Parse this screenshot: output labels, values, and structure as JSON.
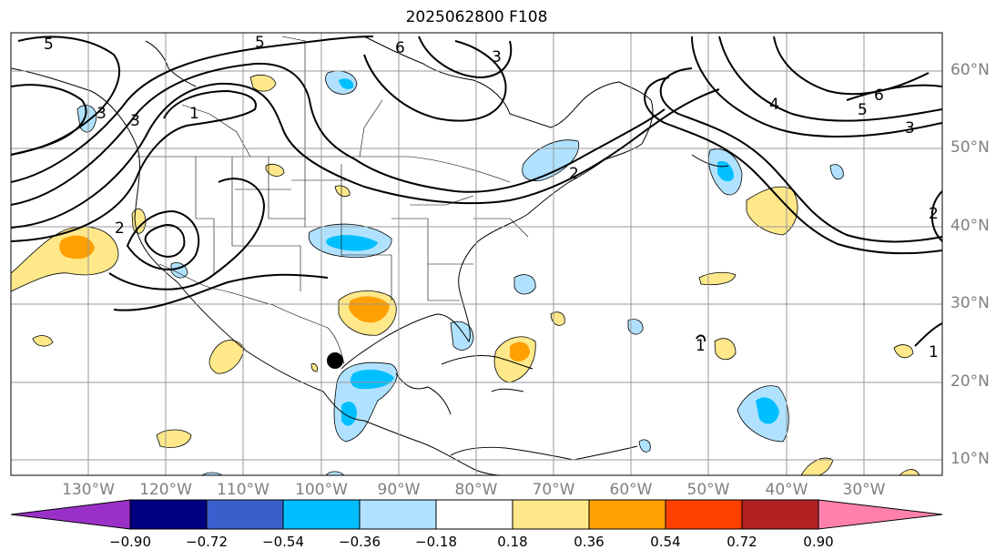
{
  "title": "2025062800 F108",
  "latitude_labels": [
    "60°N",
    "50°N",
    "40°N",
    "30°N",
    "20°N",
    "10°N"
  ],
  "longitude_labels": [
    "130°W",
    "120°W",
    "110°W",
    "100°W",
    "90°W",
    "80°W",
    "70°W",
    "60°W",
    "50°W",
    "40°W",
    "30°W"
  ],
  "contour_labels": [
    "5",
    "5",
    "6",
    "3",
    "1",
    "3",
    "2",
    "2",
    "3",
    "6",
    "5",
    "3",
    "4",
    "2",
    "1",
    "1"
  ],
  "colorbar": {
    "tick_labels": [
      "−0.90",
      "−0.72",
      "−0.54",
      "−0.36",
      "−0.18",
      "0.18",
      "0.36",
      "0.54",
      "0.72",
      "0.90"
    ],
    "colors": [
      "#9b30c8",
      "#000080",
      "#3a5fcd",
      "#00bfff",
      "#b0e2ff",
      "#ffffff",
      "#ffe88a",
      "#ffa000",
      "#ff4000",
      "#b22222",
      "#ff80aa"
    ]
  },
  "fill_colors": {
    "light_blue": "#b0e2ff",
    "blue": "#00bfff",
    "yellow": "#ffe88a",
    "orange": "#ffa000"
  },
  "marker": "storm-center-dot"
}
